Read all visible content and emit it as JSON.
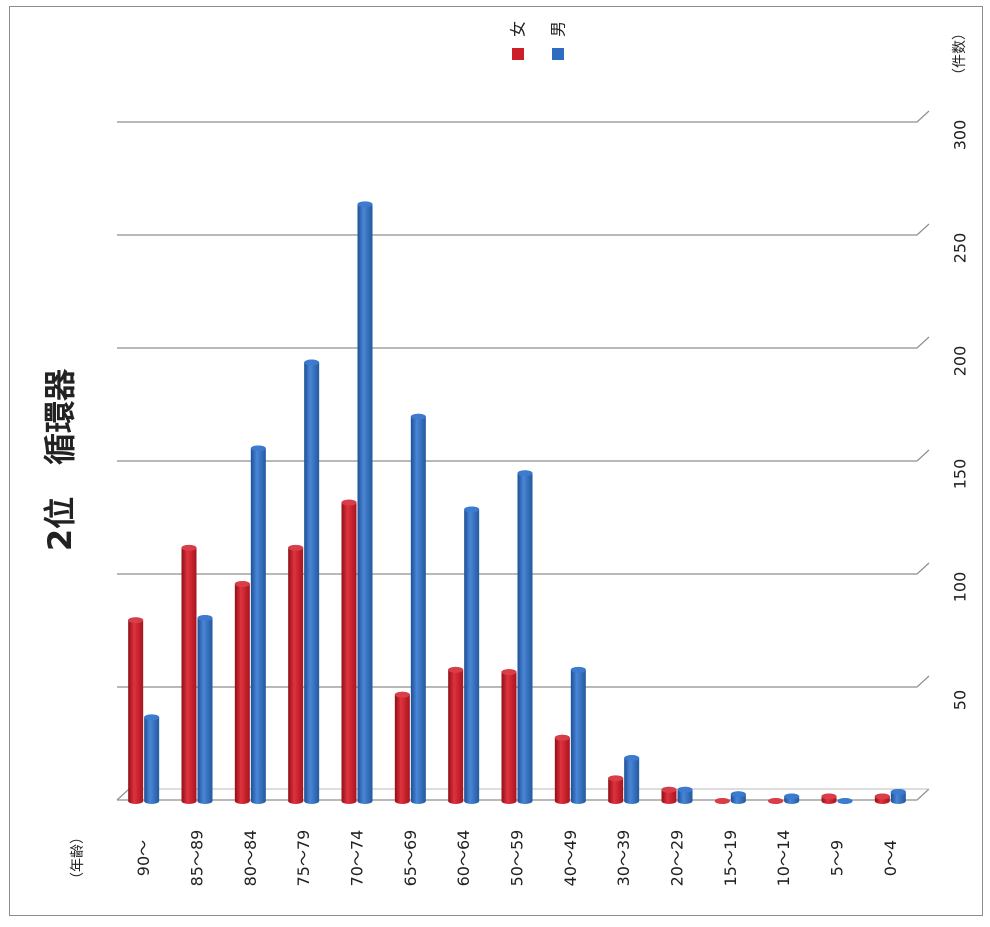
{
  "chart_data": {
    "type": "bar",
    "title": "2位　循環器",
    "xlabel": "（年齢）",
    "ylabel": "（件数）",
    "ylim": [
      0,
      300
    ],
    "yticks": [
      "50",
      "100",
      "150",
      "200",
      "250",
      "300"
    ],
    "categories": [
      "90〜",
      "85〜89",
      "80〜84",
      "75〜79",
      "70〜74",
      "65〜69",
      "60〜64",
      "50〜59",
      "40〜49",
      "30〜39",
      "20〜29",
      "15〜19",
      "10〜14",
      "5〜9",
      "0〜4"
    ],
    "series": [
      {
        "name": "女",
        "color": "#cc1f2a",
        "values": [
          80,
          112,
          96,
          112,
          132,
          47,
          58,
          57,
          28,
          10,
          5,
          0,
          0,
          2,
          2
        ]
      },
      {
        "name": "男",
        "color": "#2e6cc0",
        "values": [
          37,
          81,
          156,
          194,
          264,
          170,
          129,
          145,
          58,
          19,
          5,
          3,
          2,
          0,
          4
        ]
      }
    ],
    "legend_position": "top-right",
    "grid": true,
    "orientation": "rotated 90° clockwise"
  }
}
